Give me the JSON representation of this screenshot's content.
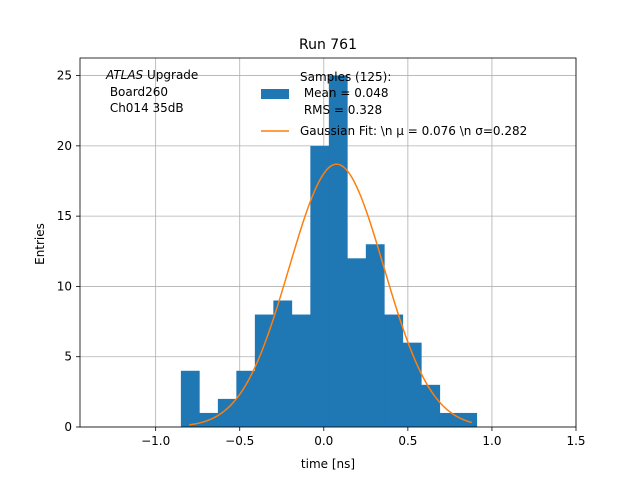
{
  "chart_data": {
    "type": "bar",
    "title": "Run 761",
    "xlabel": "time [ns]",
    "ylabel": "Entries",
    "xlim": [
      -1.45,
      1.5
    ],
    "ylim": [
      0,
      26.25
    ],
    "grid": true,
    "xticks": [
      {
        "value": -1.0,
        "label": "−1.0"
      },
      {
        "value": -0.5,
        "label": "−0.5"
      },
      {
        "value": 0.0,
        "label": "0.0"
      },
      {
        "value": 0.5,
        "label": "0.5"
      },
      {
        "value": 1.0,
        "label": "1.0"
      },
      {
        "value": 1.5,
        "label": "1.5"
      }
    ],
    "yticks": [
      {
        "value": 0,
        "label": "0"
      },
      {
        "value": 5,
        "label": "5"
      },
      {
        "value": 10,
        "label": "10"
      },
      {
        "value": 15,
        "label": "15"
      },
      {
        "value": 20,
        "label": "20"
      },
      {
        "value": 25,
        "label": "25"
      }
    ],
    "histogram": {
      "name": "Samples (125):",
      "color": "#1f77b4",
      "bin_edges": [
        -0.85,
        -0.74,
        -0.63,
        -0.52,
        -0.41,
        -0.3,
        -0.19,
        -0.08,
        0.03,
        0.14,
        0.25,
        0.36,
        0.47,
        0.58,
        0.69,
        0.8,
        0.91
      ],
      "counts": [
        4,
        1,
        2,
        4,
        8,
        9,
        8,
        20,
        25,
        12,
        13,
        8,
        6,
        3,
        1,
        1
      ]
    },
    "fit": {
      "name": "Gaussian Fit: \\n μ = 0.076 \\n σ=0.282",
      "color": "#ff7f0e",
      "mu": 0.076,
      "sigma": 0.282,
      "amplitude": 18.7,
      "x_range": [
        -0.8,
        0.88
      ]
    },
    "legend": {
      "placement": "top-right",
      "entries": [
        {
          "kind": "patch",
          "lines": [
            "Samples (125):",
            " Mean = 0.048",
            " RMS = 0.328"
          ]
        },
        {
          "kind": "line",
          "lines": [
            "Gaussian Fit: \\n μ = 0.076 \\n σ=0.282"
          ]
        }
      ]
    },
    "annotation": {
      "italic": "ATLAS",
      "lines": [
        " Upgrade",
        " Board260",
        " Ch014 35dB"
      ]
    }
  }
}
